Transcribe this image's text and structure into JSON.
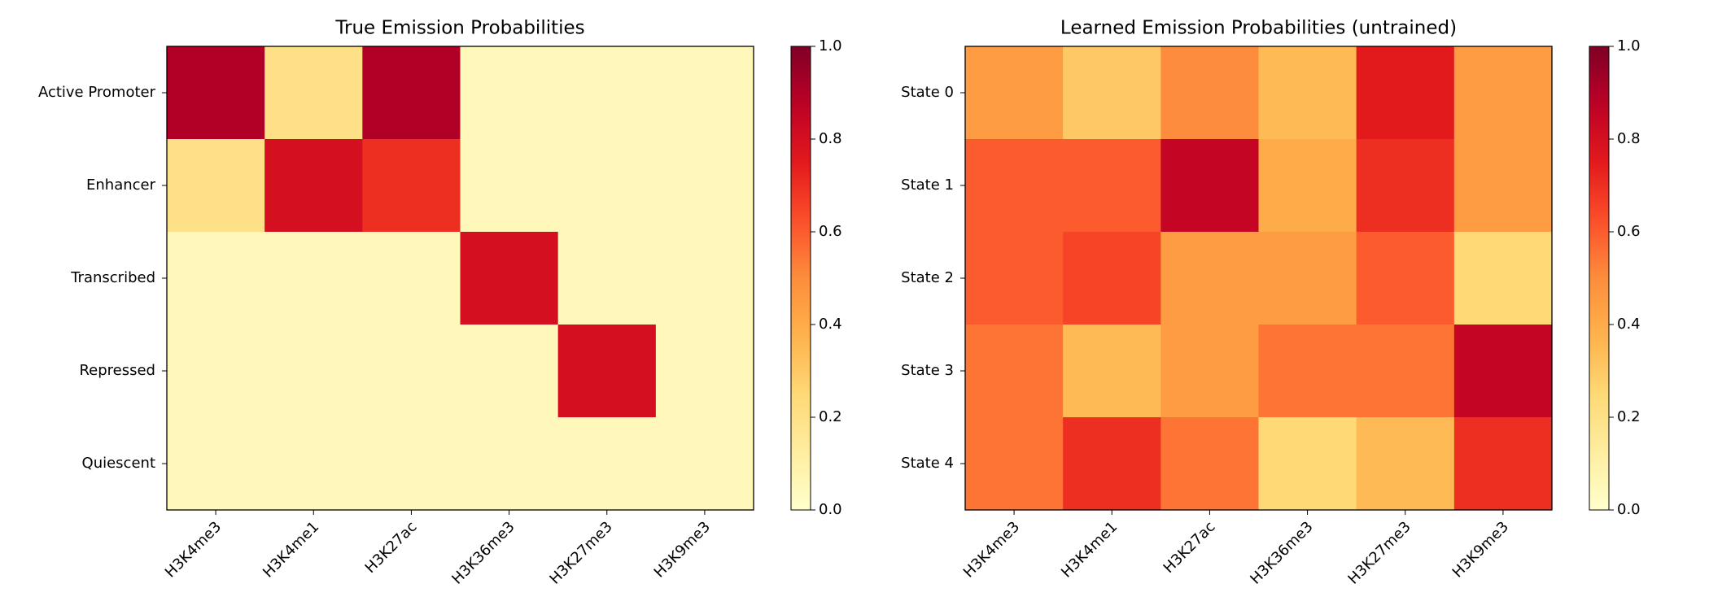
{
  "chart_data": [
    {
      "type": "heatmap",
      "title": "True Emission Probabilities",
      "categories": [
        "H3K4me3",
        "H3K4me1",
        "H3K27ac",
        "H3K36me3",
        "H3K27me3",
        "H3K9me3"
      ],
      "rows": [
        "Active Promoter",
        "Enhancer",
        "Transcribed",
        "Repressed",
        "Quiescent"
      ],
      "values": [
        [
          0.9,
          0.2,
          0.9,
          0.05,
          0.05,
          0.05
        ],
        [
          0.2,
          0.8,
          0.7,
          0.05,
          0.05,
          0.05
        ],
        [
          0.05,
          0.05,
          0.05,
          0.8,
          0.05,
          0.05
        ],
        [
          0.05,
          0.05,
          0.05,
          0.05,
          0.8,
          0.05
        ],
        [
          0.05,
          0.05,
          0.05,
          0.05,
          0.05,
          0.05
        ]
      ],
      "colormap": [
        "#ffffcc",
        "#ffeda0",
        "#fed976",
        "#feb24c",
        "#fd8d3c",
        "#fc4e2a",
        "#e31a1c",
        "#bd0026",
        "#800026"
      ],
      "clim": [
        0,
        1
      ],
      "cticks": [
        {
          "value": 0,
          "label": "0.0"
        },
        {
          "value": 0.2,
          "label": "0.2"
        },
        {
          "value": 0.4,
          "label": "0.4"
        },
        {
          "value": 0.6,
          "label": "0.6"
        },
        {
          "value": 0.8,
          "label": "0.8"
        },
        {
          "value": 1,
          "label": "1.0"
        }
      ]
    },
    {
      "type": "heatmap",
      "title": "Learned Emission Probabilities (untrained)",
      "categories": [
        "H3K4me3",
        "H3K4me1",
        "H3K27ac",
        "H3K36me3",
        "H3K27me3",
        "H3K9me3"
      ],
      "rows": [
        "State 0",
        "State 1",
        "State 2",
        "State 3",
        "State 4"
      ],
      "values": [
        [
          0.45,
          0.3,
          0.5,
          0.35,
          0.75,
          0.45
        ],
        [
          0.6,
          0.6,
          0.85,
          0.4,
          0.7,
          0.45
        ],
        [
          0.6,
          0.65,
          0.45,
          0.45,
          0.6,
          0.25
        ],
        [
          0.55,
          0.35,
          0.45,
          0.55,
          0.55,
          0.85
        ],
        [
          0.55,
          0.7,
          0.55,
          0.25,
          0.35,
          0.7
        ]
      ],
      "colormap": [
        "#ffffcc",
        "#ffeda0",
        "#fed976",
        "#feb24c",
        "#fd8d3c",
        "#fc4e2a",
        "#e31a1c",
        "#bd0026",
        "#800026"
      ],
      "clim": [
        0,
        1
      ],
      "cticks": [
        {
          "value": 0,
          "label": "0.0"
        },
        {
          "value": 0.2,
          "label": "0.2"
        },
        {
          "value": 0.4,
          "label": "0.4"
        },
        {
          "value": 0.6,
          "label": "0.6"
        },
        {
          "value": 0.8,
          "label": "0.8"
        },
        {
          "value": 1,
          "label": "1.0"
        }
      ]
    }
  ]
}
